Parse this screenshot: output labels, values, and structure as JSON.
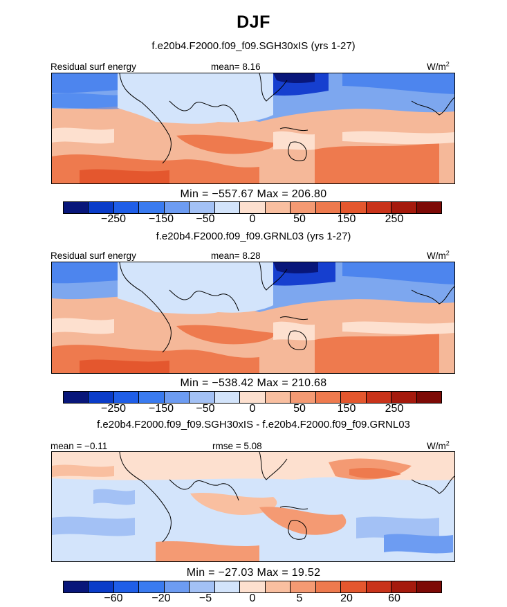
{
  "title": "DJF",
  "panels": [
    {
      "subtitle": "f.e20b4.F2000.f09_f09.SGH30xIS (yrs 1-27)",
      "left_label": "Residual surf energy",
      "center_label": "mean=   8.16",
      "units": "W/m",
      "units_exp": "2",
      "minmax": "Min = −557.67 Max = 206.80",
      "colorbar_ticks": [
        "−250",
        "−150",
        "−50",
        "0",
        "50",
        "150",
        "250"
      ]
    },
    {
      "subtitle": "f.e20b4.F2000.f09_f09.GRNL03 (yrs 1-27)",
      "left_label": "Residual surf energy",
      "center_label": "mean=   8.28",
      "units": "W/m",
      "units_exp": "2",
      "minmax": "Min = −538.42 Max = 210.68",
      "colorbar_ticks": [
        "−250",
        "−150",
        "−50",
        "0",
        "50",
        "150",
        "250"
      ]
    },
    {
      "subtitle": "f.e20b4.F2000.f09_f09.SGH30xIS - f.e20b4.F2000.f09_f09.GRNL03",
      "left_label": "mean =  −0.11",
      "center_label": "rmse =   5.08",
      "units": "W/m",
      "units_exp": "2",
      "minmax": "Min = −27.03 Max =  19.52",
      "colorbar_ticks": [
        "−60",
        "−20",
        "−5",
        "0",
        "5",
        "20",
        "60"
      ]
    }
  ],
  "colors": {
    "palette": [
      "#08167a",
      "#0a3cc9",
      "#1f5ee8",
      "#3a7bf0",
      "#6d9cf2",
      "#a3c1f5",
      "#d3e4fb",
      "#fde0cf",
      "#f9bfa0",
      "#f49a73",
      "#ee7a4e",
      "#e4572e",
      "#c9331a",
      "#a51a0d",
      "#7d0a06"
    ]
  },
  "chart_data": [
    {
      "type": "heatmap",
      "title": "Residual surf energy",
      "units": "W/m2",
      "mean": 8.16,
      "min": -557.67,
      "max": 206.8,
      "colorbar_ticks": [
        -250,
        -150,
        -50,
        0,
        50,
        150,
        250
      ]
    },
    {
      "type": "heatmap",
      "title": "Residual surf energy",
      "units": "W/m2",
      "mean": 8.28,
      "min": -538.42,
      "max": 210.68,
      "colorbar_ticks": [
        -250,
        -150,
        -50,
        0,
        50,
        150,
        250
      ]
    },
    {
      "type": "heatmap",
      "units": "W/m2",
      "mean": -0.11,
      "rmse": 5.08,
      "min": -27.03,
      "max": 19.52,
      "colorbar_ticks": [
        -60,
        -20,
        -5,
        0,
        5,
        20,
        60
      ]
    }
  ]
}
